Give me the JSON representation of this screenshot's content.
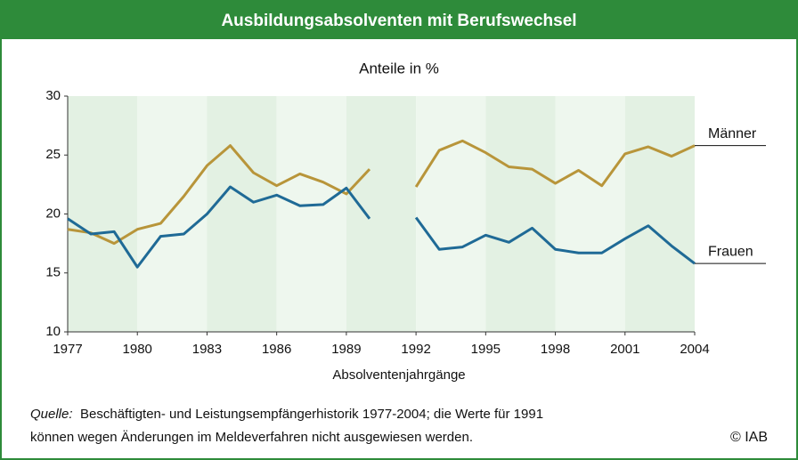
{
  "chart_data": {
    "type": "line",
    "title": "Ausbildungsabsolventen mit Berufswechsel",
    "subtitle": "Anteile in %",
    "x_label": "Absolventenjahrgänge",
    "x": [
      1977,
      1978,
      1979,
      1980,
      1981,
      1982,
      1983,
      1984,
      1985,
      1986,
      1987,
      1988,
      1989,
      1990,
      1991,
      1992,
      1993,
      1994,
      1995,
      1996,
      1997,
      1998,
      1999,
      2000,
      2001,
      2002,
      2003,
      2004
    ],
    "series": [
      {
        "name": "Männer",
        "color": "#b8953a",
        "values": [
          18.7,
          18.4,
          17.5,
          18.7,
          19.2,
          21.5,
          24.1,
          25.8,
          23.5,
          22.4,
          23.4,
          22.7,
          21.7,
          23.8,
          null,
          22.3,
          25.4,
          26.2,
          25.2,
          24.0,
          23.8,
          22.6,
          23.7,
          22.4,
          25.1,
          25.7,
          24.9,
          25.8
        ]
      },
      {
        "name": "Frauen",
        "color": "#1f6a96",
        "values": [
          19.6,
          18.3,
          18.5,
          15.5,
          18.1,
          18.3,
          20.0,
          22.3,
          21.0,
          21.6,
          20.7,
          20.8,
          22.2,
          19.6,
          null,
          19.7,
          17.0,
          17.2,
          18.2,
          17.6,
          18.8,
          17.0,
          16.7,
          16.7,
          17.9,
          19.0,
          17.3,
          15.8
        ]
      }
    ],
    "xlim": [
      1977,
      2004
    ],
    "xticks": [
      1977,
      1980,
      1983,
      1986,
      1989,
      1992,
      1995,
      1998,
      2001,
      2004
    ],
    "ylim": [
      10,
      30
    ],
    "yticks": [
      10,
      15,
      20,
      25,
      30
    ],
    "source_label": "Quelle:",
    "source_lines": [
      "Beschäftigten- und Leistungsempfängerhistorik 1977-2004; die Werte für 1991",
      "können wegen Änderungen im Meldeverfahren nicht ausgewiesen werden."
    ],
    "copyright": "© IAB"
  }
}
